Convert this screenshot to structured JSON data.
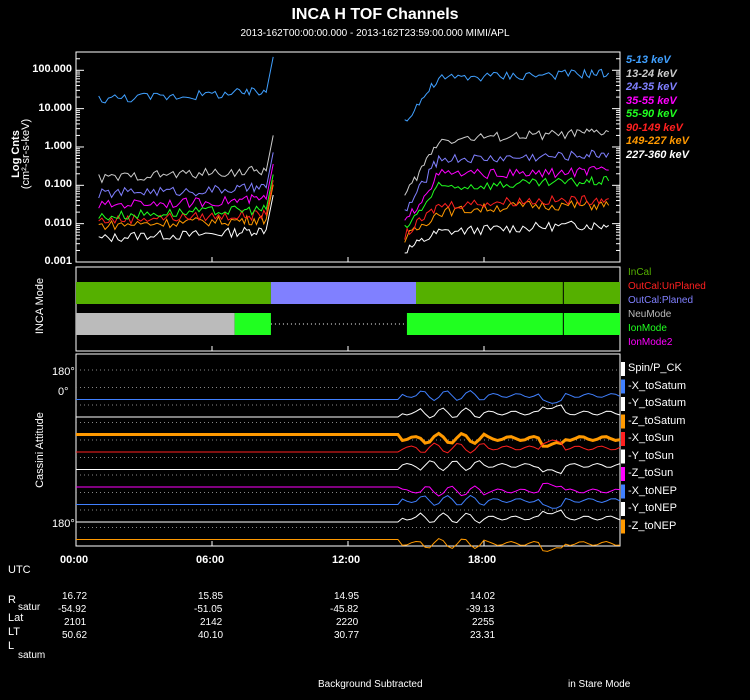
{
  "header": {
    "title": "INCA H TOF Channels",
    "subtitle": "2013-162T00:00:00.000 - 2013-162T23:59:00.000 MIMI/APL"
  },
  "panels": {
    "flux_ylabel1": "Log Cnts",
    "flux_ylabel2": "(cm²-sr-s-keV)",
    "mode_ylabel": "INCA Mode",
    "attitude_ylabel": "Cassini Attitude"
  },
  "chart_data": [
    {
      "type": "line",
      "title": "INCA H TOF Channels",
      "ylabel": "Log Cnts (cm²-sr-s-keV)",
      "yscale": "log",
      "ylim": [
        0.001,
        300
      ],
      "xlim_hours": [
        0,
        24
      ],
      "yticks": [
        "100.000",
        "10.000",
        "1.000",
        "0.100",
        "0.010",
        "0.001"
      ],
      "x_hours": [
        1,
        3,
        5,
        7,
        8.5,
        14.5,
        16,
        18,
        20,
        22,
        23.5
      ],
      "series": [
        {
          "name": "227-360 keV",
          "color": "#ffffff",
          "values": [
            0.004,
            0.005,
            0.005,
            0.006,
            0.007,
            0.002,
            0.006,
            0.007,
            0.008,
            0.009,
            0.009
          ]
        },
        {
          "name": "149-227 keV",
          "color": "#ff9900",
          "values": [
            0.009,
            0.01,
            0.011,
            0.012,
            0.013,
            0.004,
            0.02,
            0.025,
            0.03,
            0.03,
            0.03
          ]
        },
        {
          "name": "90-149 keV",
          "color": "#ff2020",
          "values": [
            0.012,
            0.014,
            0.015,
            0.016,
            0.017,
            0.005,
            0.03,
            0.035,
            0.04,
            0.04,
            0.045
          ]
        },
        {
          "name": "55-90 keV",
          "color": "#20ff20",
          "values": [
            0.015,
            0.018,
            0.02,
            0.022,
            0.024,
            0.007,
            0.09,
            0.1,
            0.11,
            0.12,
            0.13
          ]
        },
        {
          "name": "35-55 keV",
          "color": "#ff00ff",
          "values": [
            0.03,
            0.035,
            0.035,
            0.04,
            0.045,
            0.01,
            0.2,
            0.2,
            0.2,
            0.22,
            0.25
          ]
        },
        {
          "name": "24-35 keV",
          "color": "#8080ff",
          "values": [
            0.06,
            0.07,
            0.07,
            0.08,
            0.09,
            0.02,
            0.5,
            0.5,
            0.55,
            0.6,
            0.7
          ]
        },
        {
          "name": "13-24 keV",
          "color": "#cccccc",
          "values": [
            0.15,
            0.18,
            0.2,
            0.22,
            0.25,
            0.05,
            1.5,
            1.8,
            2,
            2.2,
            2.5
          ]
        },
        {
          "name": "5-13 keV",
          "color": "#40a0ff",
          "values": [
            18,
            20,
            22,
            25,
            28,
            5,
            60,
            70,
            75,
            80,
            85
          ]
        }
      ]
    }
  ],
  "mode_legend": [
    {
      "label": "InCal",
      "color": "#55b000"
    },
    {
      "label": "OutCal:UnPlaned",
      "color": "#ff2020"
    },
    {
      "label": "OutCal:Planed",
      "color": "#8080ff"
    },
    {
      "label": "NeuMode",
      "color": "#bbbbbb"
    },
    {
      "label": "IonMode",
      "color": "#20ff20"
    },
    {
      "label": "IonMode2",
      "color": "#ff00ff"
    }
  ],
  "attitude_legend": [
    {
      "label": "Spin/P_CK",
      "color": "#ffffff"
    },
    {
      "label": "-X_toSatum",
      "color": "#4080ff"
    },
    {
      "label": "-Y_toSatum",
      "color": "#ffffff"
    },
    {
      "label": "-Z_toSatum",
      "color": "#ff9900"
    },
    {
      "label": "-X_toSun",
      "color": "#ff2020"
    },
    {
      "label": "-Y_toSun",
      "color": "#ffffff"
    },
    {
      "label": "-Z_toSun",
      "color": "#ff00ff"
    },
    {
      "label": "-X_toNEP",
      "color": "#4080ff"
    },
    {
      "label": "-Y_toNEP",
      "color": "#ffffff"
    },
    {
      "label": "-Z_toNEP",
      "color": "#ff9900"
    }
  ],
  "attitude_ticks": {
    "top": "180°",
    "mid": "0°",
    "bottom": "180°"
  },
  "ephemeris": {
    "row_labels": [
      "UTC",
      "R",
      "satur",
      "Lat",
      "LT",
      "L",
      "satum"
    ],
    "times": [
      "00:00",
      "06:00",
      "12:00",
      "18:00"
    ],
    "R": [
      "16.72",
      "15.85",
      "14.95",
      "14.02"
    ],
    "Lat": [
      "-54.92",
      "-51.05",
      "-45.82",
      "-39.13"
    ],
    "LT": [
      "2101",
      "2142",
      "2220",
      "2255"
    ],
    "L": [
      "50.62",
      "40.10",
      "30.77",
      "23.31"
    ]
  },
  "footer": {
    "left": "Background Subtracted",
    "right": "in Stare Mode"
  }
}
